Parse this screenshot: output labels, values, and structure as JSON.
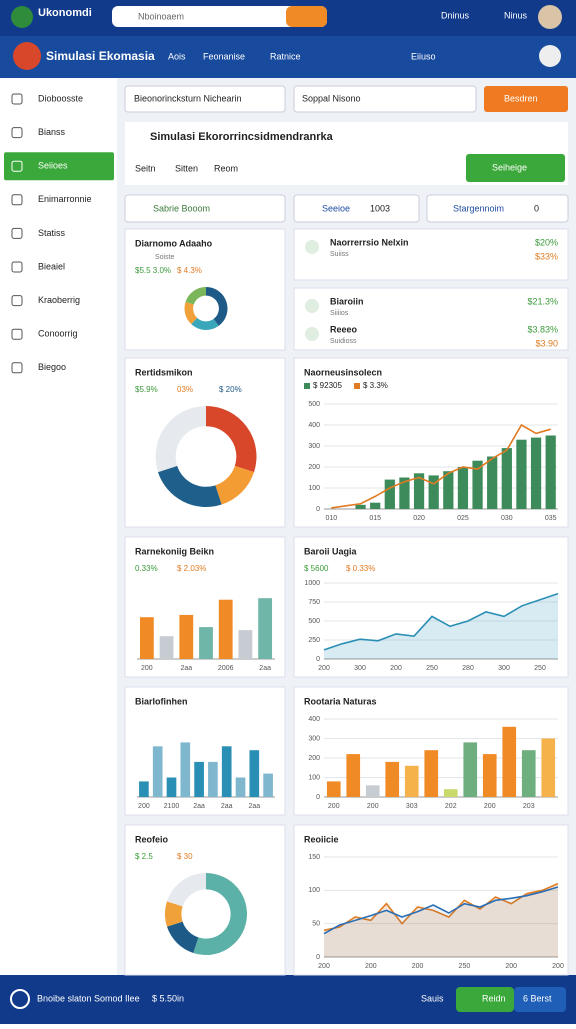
{
  "header": {
    "brand": "Ukonomdi",
    "search": "Nboinoaem",
    "links": [
      "Dninus",
      "Ninus"
    ]
  },
  "nav": {
    "title": "Simulasi Ekomasia",
    "links": [
      "Aois",
      "Feonanise",
      "Ratnice"
    ],
    "right": "Eiiuso"
  },
  "sidebar": {
    "items": [
      "Dioboosste",
      "Bianss",
      "Seiioes",
      "Enimarronnie",
      "Statiss",
      "Bieaiel",
      "Kraoberrig",
      "Conoorrig",
      "Biegoo"
    ],
    "active": 2
  },
  "toolbar": {
    "selects": [
      "Bieonorincksturn Nichearin",
      "Soppal Nisono"
    ],
    "button": "Besdren"
  },
  "panel": {
    "title": "Simulasi Ekororrincsidmendranrka",
    "tabs": [
      "Seitn",
      "Sitten",
      "Reom"
    ],
    "button": "Seiheige"
  },
  "filters": {
    "select": "Sabrie Booom",
    "chip": "Seeioe",
    "chip_value": "1003",
    "tag": "Stargennoim",
    "tag_value": "0"
  },
  "stats": [
    {
      "title": "Naorrerrsio Nelxin",
      "sub": "Suiiss",
      "value": "$20%",
      "value2": "$33%"
    },
    {
      "title": "Biaroiin",
      "sub": "Siiiios",
      "value": "$21.3%"
    },
    {
      "title": "Reeeo",
      "sub": "Suidioss",
      "value": "$3.83%",
      "value2": "$3.90"
    }
  ],
  "chart_data": [
    {
      "type": "donut",
      "title": "Diarnomo Adaaho",
      "subtitle": "Soiste",
      "annotations": [
        "$5.5 3.0%",
        "$ 4.3%"
      ],
      "values": [
        40,
        22,
        18,
        20
      ],
      "colors": [
        "#1d5a87",
        "#3aa6b9",
        "#f0a13a",
        "#7cb65a"
      ]
    },
    {
      "type": "donut",
      "title": "Rertidsmikon",
      "annotations": [
        "$5.9%",
        "03%",
        "$ 20%"
      ],
      "values": [
        30,
        15,
        25,
        30
      ],
      "colors": [
        "#d9472b",
        "#f39c34",
        "#1f5f8b",
        "#e6eaef"
      ]
    },
    {
      "type": "bar",
      "title": "Naorneusinsolecn",
      "legend": true,
      "ylim": [
        0,
        500
      ],
      "yticks": [
        0,
        100,
        200,
        300,
        400,
        500
      ],
      "categories": [
        "010",
        null,
        null,
        "015",
        null,
        null,
        "020",
        null,
        null,
        "025",
        null,
        null,
        "030",
        null,
        null,
        "035"
      ],
      "series": [
        {
          "name": "$ 92305",
          "color": "#3d8b5a",
          "values": [
            0,
            0,
            20,
            30,
            140,
            150,
            170,
            160,
            180,
            200,
            230,
            250,
            290,
            330,
            340,
            350
          ]
        },
        {
          "name": "$ 3.3%",
          "color": "#e07b22",
          "type": "line",
          "values": [
            5,
            15,
            25,
            60,
            100,
            130,
            150,
            120,
            170,
            200,
            190,
            240,
            280,
            400,
            360,
            380
          ]
        }
      ]
    },
    {
      "type": "bar",
      "title": "Rarnekoniig Beikn",
      "annotations": [
        "0.33%",
        "$ 2.03%"
      ],
      "ylim": [
        0,
        100
      ],
      "categories": [
        "200",
        null,
        "2aa",
        null,
        "2006",
        null,
        "2aa"
      ],
      "series": [
        {
          "name": "Beikn",
          "color": "#f08a24",
          "values": [
            55,
            30,
            58,
            42,
            78,
            38,
            80
          ]
        }
      ],
      "colors": [
        "#f08a24",
        "#c7ccd3",
        "#f08a24",
        "#6fb6a8",
        "#f08a24",
        "#c7ccd3",
        "#6fb6a8"
      ]
    },
    {
      "type": "area",
      "title": "Baroii Uagia",
      "annotations": [
        "$ 5600",
        "$ 0.33%"
      ],
      "ylim": [
        0,
        1000
      ],
      "yticks": [
        0,
        250,
        500,
        750,
        1000
      ],
      "categories": [
        "200",
        null,
        "300",
        null,
        "200",
        null,
        "250",
        null,
        "280",
        null,
        "300",
        null,
        "250",
        null
      ],
      "series": [
        {
          "name": "Uagia",
          "color": "#2a8fb5",
          "values": [
            120,
            200,
            260,
            240,
            330,
            300,
            560,
            430,
            500,
            620,
            560,
            700,
            780,
            860
          ]
        }
      ]
    },
    {
      "type": "bar",
      "title": "Biarlofinhen",
      "ylim": [
        0,
        100
      ],
      "categories": [
        "200",
        null,
        "2100",
        null,
        "2aa",
        null,
        "2aa",
        null,
        "2aa",
        null
      ],
      "series": [
        {
          "name": "Biarlofinhen",
          "color": "#2a8fb5",
          "values": [
            20,
            65,
            25,
            70,
            45,
            45,
            65,
            25,
            60,
            30
          ]
        }
      ],
      "colors": [
        "#2a8fb5",
        "#7fb7cf",
        "#2a8fb5",
        "#7fb7cf",
        "#2a8fb5",
        "#7fb7cf",
        "#2a8fb5",
        "#7fb7cf",
        "#2a8fb5",
        "#7fb7cf"
      ]
    },
    {
      "type": "bar",
      "title": "Rootaria Naturas",
      "ylim": [
        0,
        400
      ],
      "yticks": [
        0,
        100,
        200,
        300,
        400
      ],
      "categories": [
        "200",
        null,
        "200",
        null,
        "303",
        null,
        "202",
        null,
        "200",
        null,
        "203",
        null
      ],
      "series": [
        {
          "name": "Naturas",
          "color": "#f08a24",
          "values": [
            80,
            220,
            60,
            180,
            160,
            240,
            40,
            280,
            220,
            360,
            240,
            300
          ]
        }
      ],
      "colors": [
        "#f08a24",
        "#f08a24",
        "#c7ccd3",
        "#f08a24",
        "#f6b24a",
        "#f08a24",
        "#c9d96a",
        "#6fae7e",
        "#f08a24",
        "#f08a24",
        "#6fae7e",
        "#f6b24a"
      ]
    },
    {
      "type": "donut",
      "title": "Reofeio",
      "annotations": [
        "$ 2.5",
        "$ 30"
      ],
      "values": [
        55,
        15,
        10,
        20
      ],
      "colors": [
        "#5bb0a8",
        "#1d5a87",
        "#f0a13a",
        "#e6eaef"
      ]
    },
    {
      "type": "area",
      "title": "Reoiicie",
      "ylim": [
        0,
        150
      ],
      "yticks": [
        0,
        50,
        100,
        150
      ],
      "categories": [
        "200",
        null,
        null,
        "200",
        null,
        null,
        "200",
        null,
        null,
        "250",
        null,
        null,
        "200",
        null,
        null,
        "200"
      ],
      "series": [
        {
          "name": "A",
          "color": "#e07b22",
          "values": [
            40,
            45,
            60,
            55,
            80,
            50,
            75,
            70,
            60,
            85,
            72,
            90,
            80,
            95,
            100,
            110
          ]
        },
        {
          "name": "B",
          "color": "#2a6fb5",
          "values": [
            35,
            48,
            55,
            62,
            70,
            60,
            68,
            78,
            66,
            80,
            75,
            85,
            88,
            92,
            98,
            105
          ]
        }
      ]
    }
  ],
  "footer": {
    "text": "Bnoibe slaton Somod Ilee",
    "value": "$ 5.50in",
    "link": "Sauis",
    "buttons": [
      "Reidn",
      "6 Berst"
    ]
  }
}
